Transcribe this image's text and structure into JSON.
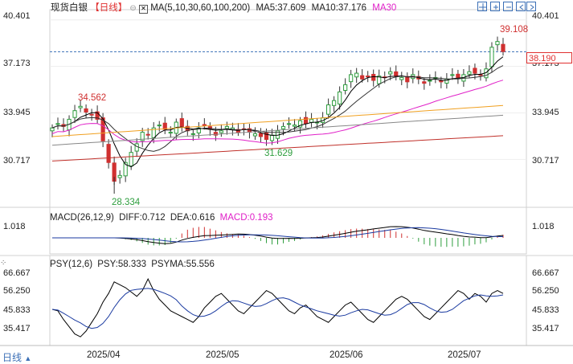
{
  "header": {
    "symbol": "现货白银",
    "period": "【日线】",
    "ma_label": "MA(5,10,30,60,100,200)",
    "ma5": "MA5:37.609",
    "ma10": "MA10:37.176",
    "ma30": "MA30"
  },
  "price_axis": {
    "left": [
      "40.401",
      "37.173",
      "33.945",
      "30.717"
    ],
    "right": [
      "40.401",
      "37.173",
      "33.945",
      "30.717"
    ]
  },
  "price_annotations": {
    "high_1": "34.562",
    "low_1": "28.334",
    "low_2": "31.629",
    "high_2": "39.108",
    "last_price": "38.190"
  },
  "macd": {
    "label": "MACD(26,12,9)",
    "diff": "DIFF:0.712",
    "dea": "DEA:0.616",
    "macd": "MACD:0.193",
    "axis_left": "1.018",
    "axis_right": "1.018"
  },
  "psy": {
    "label": "PSY(12,6)",
    "psy": "PSY:58.333",
    "psyma": "PSYMA:55.556",
    "axis_left": [
      "66.667",
      "56.250",
      "45.833",
      "35.417"
    ],
    "axis_right": [
      "66.667",
      "56.250",
      "45.833",
      "35.417"
    ]
  },
  "x_axis": [
    "2025/04",
    "2025/05",
    "2025/06",
    "2025/07"
  ],
  "bottom_period": "日线",
  "colors": {
    "up": "#2e9e3e",
    "down": "#d03030",
    "ma5": "#000000",
    "ma10": "#333333",
    "ma30": "#e020c8",
    "ma60": "#f0a020",
    "ma100": "#888888",
    "ma200": "#c0302a",
    "accent": "#e03030",
    "lastprice_dash": "#3a70b8"
  },
  "chart_data": {
    "type": "candlestick",
    "title": "现货白银 日线",
    "ylim": [
      27.5,
      41.0
    ],
    "y_ticks": [
      30.717,
      33.945,
      37.173,
      40.401
    ],
    "x_ticks": [
      "2025/04",
      "2025/05",
      "2025/06",
      "2025/07"
    ],
    "last_price": 38.19,
    "high_mark": 39.108,
    "low_mark": 28.334,
    "indicators": {
      "MA5": 37.609,
      "MA10": 37.176,
      "DIFF": 0.712,
      "DEA": 0.616,
      "MACD": 0.193,
      "PSY": 58.333,
      "PSYMA": 55.556
    }
  },
  "toolbar_icons": [
    "crosshair-icon",
    "zoom-in-icon",
    "zoom-out-icon",
    "scroll-left-icon",
    "scroll-right-icon"
  ]
}
